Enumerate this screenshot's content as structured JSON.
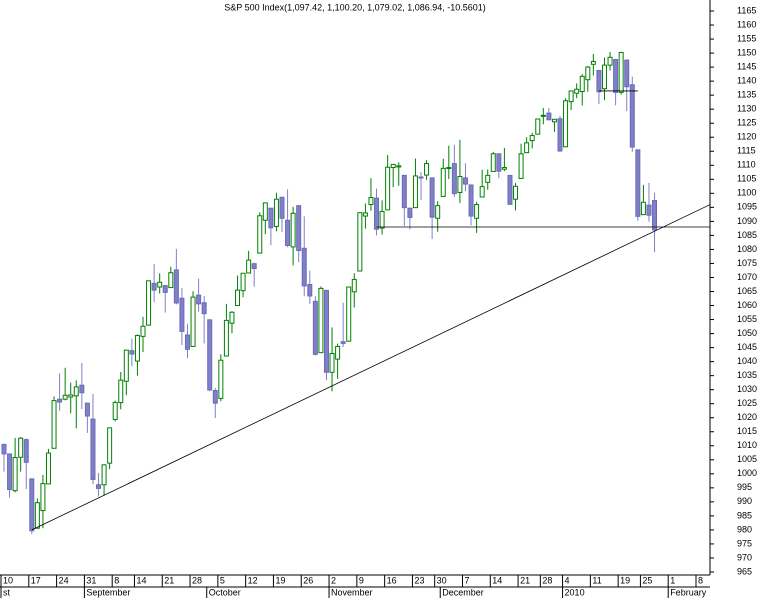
{
  "chart_data": {
    "type": "candlestick",
    "title": "S&P 500 Index(1,097.42, 1,100.20, 1,079.02, 1,086.94, -10.5601)",
    "categories": [
      "10",
      null,
      null,
      null,
      null,
      "17",
      null,
      null,
      null,
      null,
      "24",
      null,
      null,
      null,
      null,
      "31",
      null,
      null,
      null,
      null,
      "8",
      null,
      null,
      null,
      "14",
      null,
      null,
      null,
      null,
      "21",
      null,
      null,
      null,
      null,
      "28",
      null,
      null,
      null,
      null,
      "5",
      null,
      null,
      null,
      null,
      "12",
      null,
      null,
      null,
      null,
      "19",
      null,
      null,
      null,
      null,
      "26",
      null,
      null,
      null,
      null,
      "2",
      null,
      null,
      null,
      null,
      "9",
      null,
      null,
      null,
      null,
      "16",
      null,
      null,
      null,
      null,
      "23",
      null,
      null,
      null,
      "30",
      null,
      null,
      null,
      null,
      "7",
      null,
      null,
      null,
      null,
      "14",
      null,
      null,
      null,
      null,
      "21",
      null,
      null,
      null,
      "28",
      null,
      null,
      null,
      "4",
      null,
      null,
      null,
      null,
      "11",
      null,
      null,
      null,
      null,
      "19",
      null,
      null,
      null,
      "25",
      null,
      null,
      null,
      null,
      "1",
      null,
      null,
      null,
      null,
      "8",
      null,
      null
    ],
    "months": [
      {
        "label": "st",
        "index": 0
      },
      {
        "label": "September",
        "index": 15
      },
      {
        "label": "October",
        "index": 37
      },
      {
        "label": "November",
        "index": 59
      },
      {
        "label": "December",
        "index": 79
      },
      {
        "label": "2010",
        "index": 101
      },
      {
        "label": "February",
        "index": 120
      }
    ],
    "candles": [
      [
        1010.5,
        1010.5,
        1000.8,
        1007.1
      ],
      [
        1007.1,
        1007.1,
        991.5,
        994.4
      ],
      [
        994.0,
        1012.8,
        993.4,
        1005.8
      ],
      [
        1005.9,
        1013.1,
        1000.8,
        1012.7
      ],
      [
        1012.2,
        1012.6,
        994.6,
        1004.1
      ],
      [
        998.2,
        998.2,
        978.5,
        979.7
      ],
      [
        980.6,
        991.2,
        980.6,
        989.7
      ],
      [
        986.9,
        999.6,
        980.6,
        996.5
      ],
      [
        996.4,
        1008.9,
        996.4,
        1007.4
      ],
      [
        1009.1,
        1027.6,
        1009.1,
        1026.1
      ],
      [
        1026.6,
        1035.8,
        1022.5,
        1025.6
      ],
      [
        1026.6,
        1037.8,
        1026.2,
        1028.0
      ],
      [
        1027.4,
        1032.5,
        1021.6,
        1028.1
      ],
      [
        1027.8,
        1033.3,
        1016.2,
        1031.0
      ],
      [
        1031.6,
        1039.5,
        1023.1,
        1028.9
      ],
      [
        1025.2,
        1025.2,
        1014.6,
        1020.6
      ],
      [
        1019.5,
        1028.5,
        996.3,
        998.0
      ],
      [
        996.1,
        1000.3,
        991.9,
        994.8
      ],
      [
        996.1,
        1003.4,
        992.3,
        1003.2
      ],
      [
        1003.8,
        1016.5,
        1001.7,
        1016.4
      ],
      [
        1019.4,
        1026.1,
        1018.7,
        1025.4
      ],
      [
        1025.4,
        1036.3,
        1023.0,
        1033.4
      ],
      [
        1033.0,
        1044.1,
        1028.0,
        1044.1
      ],
      [
        1043.9,
        1048.2,
        1038.4,
        1042.7
      ],
      [
        1040.2,
        1049.7,
        1035.0,
        1049.3
      ],
      [
        1049.0,
        1056.0,
        1043.4,
        1052.6
      ],
      [
        1053.0,
        1068.8,
        1052.9,
        1068.8
      ],
      [
        1067.9,
        1074.8,
        1061.2,
        1065.5
      ],
      [
        1066.6,
        1071.5,
        1064.3,
        1068.3
      ],
      [
        1067.1,
        1067.3,
        1057.5,
        1064.7
      ],
      [
        1066.4,
        1073.8,
        1066.4,
        1071.7
      ],
      [
        1072.7,
        1080.2,
        1060.4,
        1060.9
      ],
      [
        1062.6,
        1066.3,
        1045.9,
        1050.8
      ],
      [
        1049.5,
        1053.5,
        1041.2,
        1044.4
      ],
      [
        1045.4,
        1065.1,
        1045.4,
        1063.0
      ],
      [
        1063.7,
        1069.6,
        1057.8,
        1060.6
      ],
      [
        1061.0,
        1063.4,
        1046.5,
        1057.1
      ],
      [
        1054.9,
        1054.9,
        1029.4,
        1029.9
      ],
      [
        1029.7,
        1030.6,
        1019.9,
        1025.2
      ],
      [
        1026.9,
        1042.6,
        1025.9,
        1040.5
      ],
      [
        1042.0,
        1060.6,
        1042.0,
        1054.7
      ],
      [
        1053.7,
        1058.0,
        1050.1,
        1057.6
      ],
      [
        1060.0,
        1070.7,
        1060.0,
        1065.5
      ],
      [
        1065.3,
        1071.5,
        1063.0,
        1071.5
      ],
      [
        1071.6,
        1079.5,
        1071.6,
        1076.2
      ],
      [
        1074.9,
        1075.3,
        1066.7,
        1073.2
      ],
      [
        1078.7,
        1093.2,
        1078.7,
        1092.0
      ],
      [
        1090.4,
        1096.6,
        1085.4,
        1096.6
      ],
      [
        1094.7,
        1094.7,
        1081.5,
        1087.7
      ],
      [
        1088.2,
        1100.2,
        1086.5,
        1097.9
      ],
      [
        1098.6,
        1098.6,
        1086.2,
        1091.1
      ],
      [
        1090.4,
        1101.4,
        1080.8,
        1081.4
      ],
      [
        1080.9,
        1095.2,
        1074.3,
        1092.9
      ],
      [
        1095.6,
        1095.8,
        1075.5,
        1079.6
      ],
      [
        1080.4,
        1091.8,
        1063.3,
        1067.0
      ],
      [
        1067.5,
        1072.5,
        1060.6,
        1063.4
      ],
      [
        1061.5,
        1063.3,
        1042.2,
        1042.6
      ],
      [
        1043.2,
        1066.8,
        1043.2,
        1066.1
      ],
      [
        1065.4,
        1065.4,
        1033.4,
        1036.2
      ],
      [
        1036.2,
        1052.2,
        1029.4,
        1042.9
      ],
      [
        1040.9,
        1046.4,
        1033.9,
        1045.4
      ],
      [
        1047.1,
        1061.0,
        1045.2,
        1046.5
      ],
      [
        1047.3,
        1066.7,
        1047.3,
        1066.6
      ],
      [
        1064.9,
        1071.5,
        1059.3,
        1069.3
      ],
      [
        1072.3,
        1093.2,
        1072.3,
        1093.1
      ],
      [
        1091.9,
        1096.4,
        1087.4,
        1093.0
      ],
      [
        1096.0,
        1105.4,
        1093.8,
        1098.5
      ],
      [
        1098.3,
        1101.7,
        1085.0,
        1087.2
      ],
      [
        1087.6,
        1097.5,
        1085.3,
        1093.5
      ],
      [
        1094.1,
        1113.7,
        1094.1,
        1109.3
      ],
      [
        1109.2,
        1110.5,
        1102.2,
        1110.3
      ],
      [
        1109.4,
        1111.1,
        1102.7,
        1109.8
      ],
      [
        1106.4,
        1106.4,
        1088.4,
        1094.9
      ],
      [
        1094.7,
        1094.7,
        1087.1,
        1091.4
      ],
      [
        1094.9,
        1112.4,
        1094.9,
        1106.2
      ],
      [
        1105.8,
        1107.6,
        1097.6,
        1105.7
      ],
      [
        1106.5,
        1111.8,
        1104.8,
        1110.6
      ],
      [
        1105.5,
        1105.5,
        1083.7,
        1091.5
      ],
      [
        1091.1,
        1097.2,
        1086.3,
        1095.6
      ],
      [
        1098.9,
        1112.3,
        1098.9,
        1108.9
      ],
      [
        1109.0,
        1117.0,
        1105.1,
        1109.2
      ],
      [
        1110.6,
        1117.3,
        1098.7,
        1099.9
      ],
      [
        1100.3,
        1119.1,
        1096.5,
        1106.0
      ],
      [
        1105.5,
        1110.7,
        1100.8,
        1103.3
      ],
      [
        1103.0,
        1103.0,
        1088.6,
        1091.9
      ],
      [
        1091.1,
        1097.0,
        1085.9,
        1096.0
      ],
      [
        1098.7,
        1108.4,
        1098.7,
        1102.4
      ],
      [
        1103.9,
        1108.5,
        1101.3,
        1106.4
      ],
      [
        1107.8,
        1114.8,
        1107.8,
        1114.1
      ],
      [
        1114.1,
        1114.1,
        1105.4,
        1107.9
      ],
      [
        1108.6,
        1116.2,
        1107.9,
        1109.2
      ],
      [
        1106.4,
        1106.4,
        1095.9,
        1096.1
      ],
      [
        1097.9,
        1103.7,
        1093.9,
        1102.5
      ],
      [
        1105.3,
        1117.7,
        1105.3,
        1114.1
      ],
      [
        1114.5,
        1120.0,
        1114.5,
        1118.0
      ],
      [
        1118.8,
        1121.6,
        1116.0,
        1120.6
      ],
      [
        1121.1,
        1126.5,
        1121.1,
        1126.5
      ],
      [
        1127.5,
        1130.4,
        1124.6,
        1127.8
      ],
      [
        1128.6,
        1130.4,
        1126.2,
        1126.2
      ],
      [
        1125.5,
        1126.4,
        1121.9,
        1126.4
      ],
      [
        1126.6,
        1127.6,
        1114.8,
        1115.1
      ],
      [
        1116.6,
        1133.9,
        1116.6,
        1133.0
      ],
      [
        1132.7,
        1136.6,
        1129.7,
        1136.5
      ],
      [
        1135.7,
        1139.2,
        1133.9,
        1137.1
      ],
      [
        1136.3,
        1142.5,
        1131.3,
        1141.7
      ],
      [
        1140.5,
        1145.4,
        1136.2,
        1145.0
      ],
      [
        1146.0,
        1149.7,
        1142.0,
        1147.0
      ],
      [
        1143.8,
        1143.8,
        1131.8,
        1136.2
      ],
      [
        1137.3,
        1148.4,
        1133.2,
        1145.7
      ],
      [
        1145.7,
        1150.4,
        1143.8,
        1148.5
      ],
      [
        1147.7,
        1147.8,
        1131.4,
        1136.0
      ],
      [
        1136.0,
        1150.5,
        1135.2,
        1150.2
      ],
      [
        1147.5,
        1147.5,
        1129.3,
        1138.0
      ],
      [
        1138.7,
        1141.6,
        1114.8,
        1116.5
      ],
      [
        1115.5,
        1115.5,
        1090.2,
        1091.8
      ],
      [
        1092.4,
        1103.0,
        1092.4,
        1096.8
      ],
      [
        1095.8,
        1103.7,
        1089.9,
        1092.2
      ],
      [
        1097.42,
        1100.2,
        1079.02,
        1086.94
      ],
      null,
      null,
      null,
      null,
      null,
      null,
      null,
      null,
      null,
      null
    ],
    "up_color": "#008000",
    "down_color": "#8080c8",
    "trend_lines": [
      {
        "x": [
          5,
          127
        ],
        "y": [
          980,
          1096
        ]
      },
      {
        "x": [
          67,
          127
        ],
        "y": [
          1088,
          1088
        ]
      },
      {
        "x": [
          107,
          114
        ],
        "y": [
          1136.5,
          1136.5
        ]
      }
    ],
    "ylim": [
      962.5,
      1167.5
    ],
    "yticks": [
      965,
      970,
      975,
      980,
      985,
      990,
      995,
      1000,
      1005,
      1010,
      1015,
      1020,
      1025,
      1030,
      1035,
      1040,
      1045,
      1050,
      1055,
      1060,
      1065,
      1070,
      1075,
      1080,
      1085,
      1090,
      1095,
      1100,
      1105,
      1110,
      1115,
      1120,
      1125,
      1130,
      1135,
      1140,
      1145,
      1150,
      1155,
      1160,
      1165
    ]
  }
}
